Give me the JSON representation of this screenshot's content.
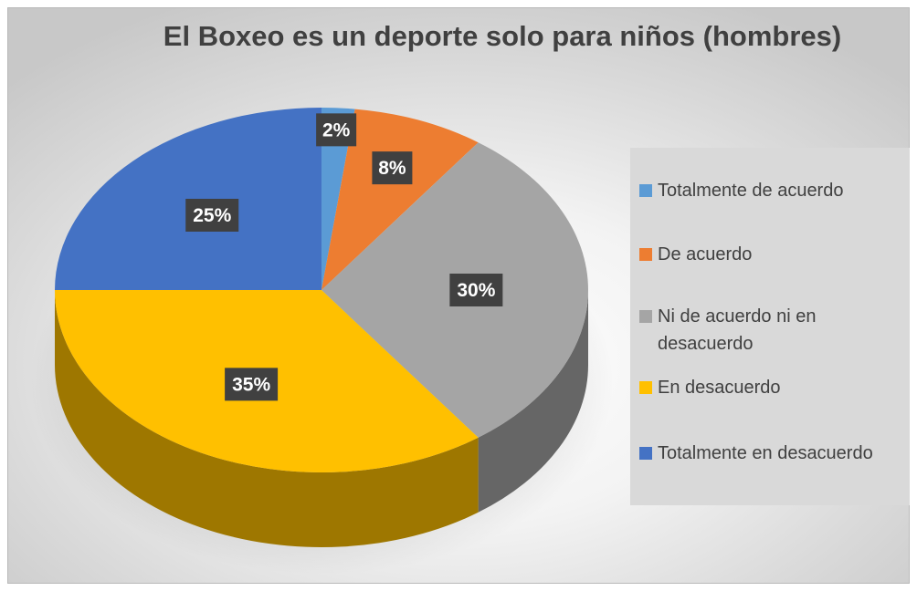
{
  "chart_data": {
    "type": "pie",
    "title": "El Boxeo es un deporte solo para niños (hombres)",
    "legend_position": "right",
    "slices": [
      {
        "label": "Totalmente de acuerdo",
        "value": 2,
        "display": "2%",
        "color": "#5B9BD5"
      },
      {
        "label": "De acuerdo",
        "value": 8,
        "display": "8%",
        "color": "#ED7D31"
      },
      {
        "label": "Ni de acuerdo ni en desacuerdo",
        "value": 30,
        "display": "30%",
        "color": "#A5A5A5"
      },
      {
        "label": "En desacuerdo",
        "value": 35,
        "display": "35%",
        "color": "#FFC000"
      },
      {
        "label": "Totalmente en desacuerdo",
        "value": 25,
        "display": "25%",
        "color": "#4472C4"
      }
    ]
  }
}
